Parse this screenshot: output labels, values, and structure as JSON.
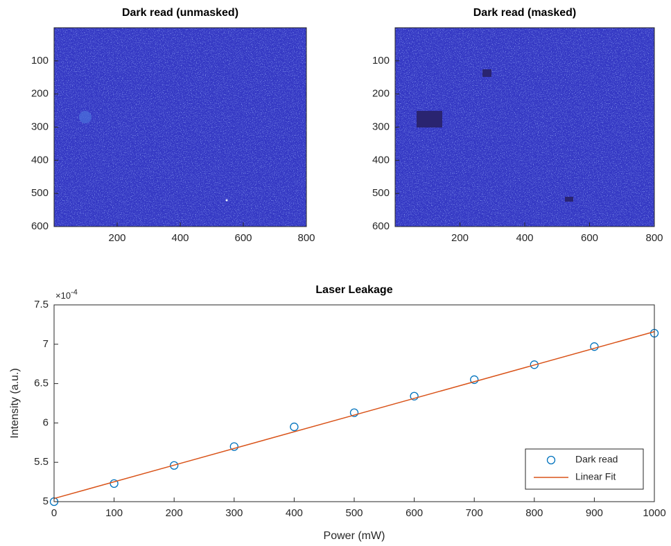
{
  "chart_data": [
    {
      "type": "image",
      "title": "Dark read (unmasked)",
      "color": "#3539c4",
      "xlim": [
        0,
        800
      ],
      "ylim": [
        0,
        600
      ],
      "xticks": [
        200,
        400,
        600,
        800
      ],
      "yticks": [
        100,
        200,
        300,
        400,
        500,
        600
      ],
      "y_reversed": true
    },
    {
      "type": "image",
      "title": "Dark read (masked)",
      "color": "#3539c4",
      "xlim": [
        0,
        800
      ],
      "ylim": [
        0,
        600
      ],
      "xticks": [
        200,
        400,
        600,
        800
      ],
      "yticks": [
        100,
        200,
        300,
        400,
        500,
        600
      ],
      "y_reversed": true
    },
    {
      "type": "scatter",
      "title": "Laser Leakage",
      "x_label": "Power (mW)",
      "y_label": "Intensity (a.u.)",
      "y_multiplier": "×10",
      "y_exponent": "-4",
      "xlim": [
        0,
        1000
      ],
      "ylim": [
        5,
        7.5
      ],
      "xticks": [
        0,
        100,
        200,
        300,
        400,
        500,
        600,
        700,
        800,
        900,
        1000
      ],
      "yticks": [
        5,
        5.5,
        6,
        6.5,
        7,
        7.5
      ],
      "legend": "lower right",
      "series": [
        {
          "name": "Dark read",
          "color": "#0072bd",
          "marker": "circle",
          "x": [
            0,
            100,
            200,
            300,
            400,
            500,
            600,
            700,
            800,
            900,
            1000
          ],
          "values": [
            5.0,
            5.23,
            5.46,
            5.7,
            5.95,
            6.13,
            6.34,
            6.55,
            6.74,
            6.97,
            7.14
          ]
        },
        {
          "name": "Linear Fit",
          "color": "#d95319",
          "marker": "line",
          "x": [
            0,
            1000
          ],
          "values": [
            5.04,
            7.16
          ]
        }
      ]
    }
  ]
}
